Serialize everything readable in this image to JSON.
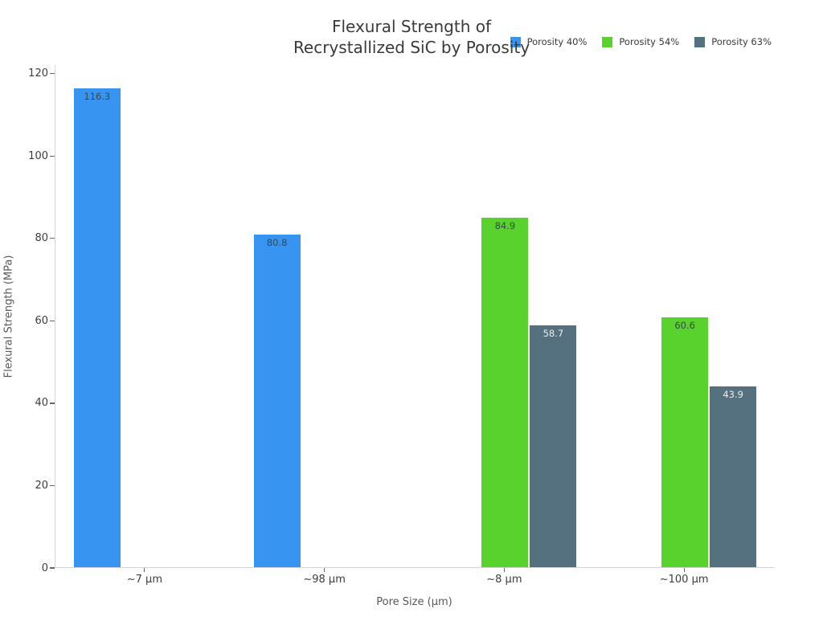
{
  "title": "Flexural Strength of\nRecrystallized SiC by Porosity",
  "colors": {
    "background": "#ffffff",
    "axis_line": "#d4d4d4",
    "tick_mark": "#666666",
    "tick_text": "#3d3d3d",
    "axis_label_text": "#595959",
    "title_text": "#3a3a3a"
  },
  "chart_data": {
    "type": "bar",
    "title": "Flexural Strength of Recrystallized SiC by Porosity",
    "xlabel": "Pore Size (μm)",
    "ylabel": "Flexural Strength (MPa)",
    "categories": [
      "~7 μm",
      "~98 μm",
      "~8 μm",
      "~100 μm"
    ],
    "series": [
      {
        "name": "Porosity 40%",
        "color": "#3795f1",
        "value_label_color": "#37474f",
        "values": [
          116.3,
          80.8,
          null,
          null
        ]
      },
      {
        "name": "Porosity 54%",
        "color": "#5ad22e",
        "value_label_color": "#37474f",
        "values": [
          null,
          null,
          84.9,
          60.6
        ]
      },
      {
        "name": "Porosity 63%",
        "color": "#55707e",
        "value_label_color": "#e8eef1",
        "values": [
          null,
          null,
          58.7,
          43.9
        ]
      }
    ],
    "ylim": [
      0,
      122.1
    ],
    "ytick_step": 20,
    "grid": false,
    "legend_position": "top-right",
    "value_labels": "inside-top"
  }
}
